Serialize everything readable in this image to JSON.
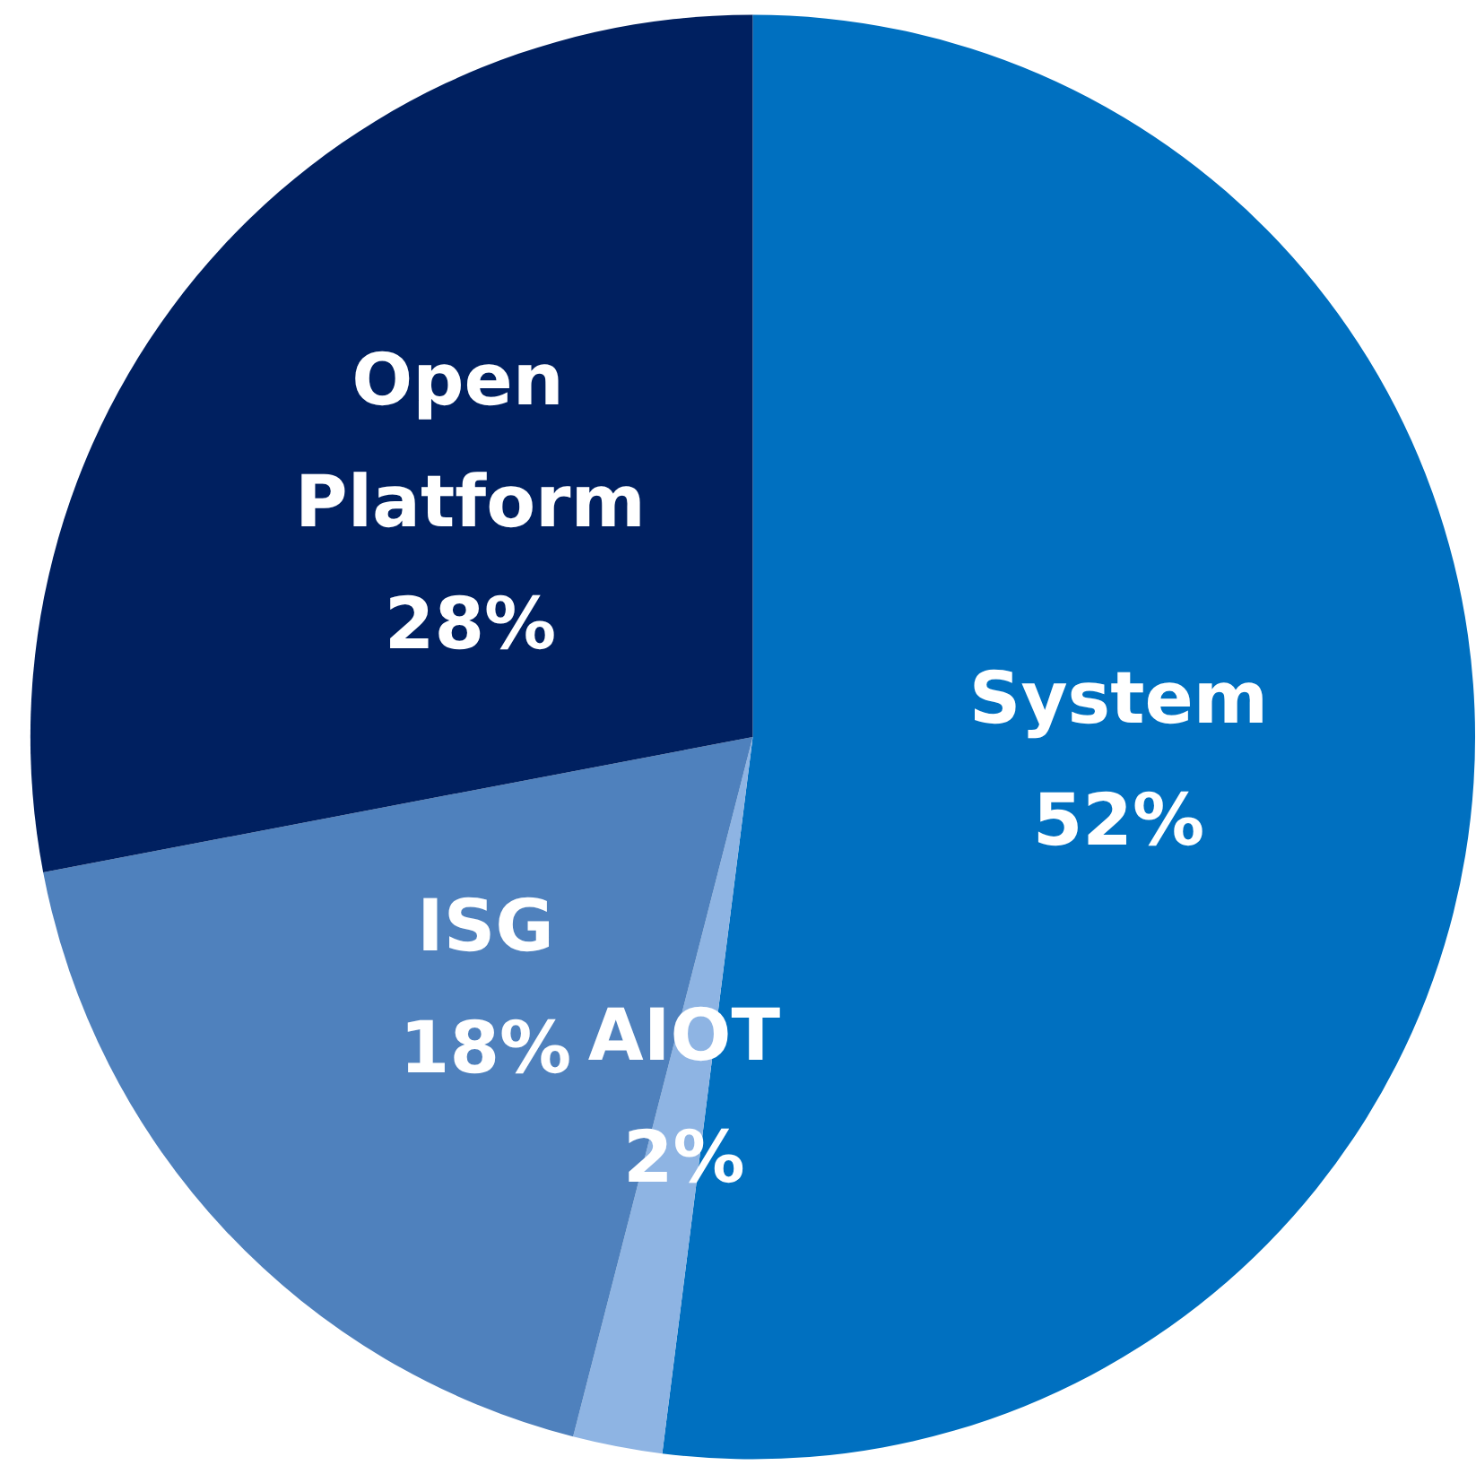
{
  "chart_data": {
    "type": "pie",
    "categories": [
      "System",
      "AIOT",
      "ISG",
      "Open Platform"
    ],
    "values": [
      52,
      2,
      18,
      28
    ],
    "value_labels": [
      "52%",
      "2%",
      "18%",
      "28%"
    ],
    "colors": [
      "#0070c0",
      "#8eb4e3",
      "#4f81bd",
      "#002060"
    ],
    "legend": false
  }
}
